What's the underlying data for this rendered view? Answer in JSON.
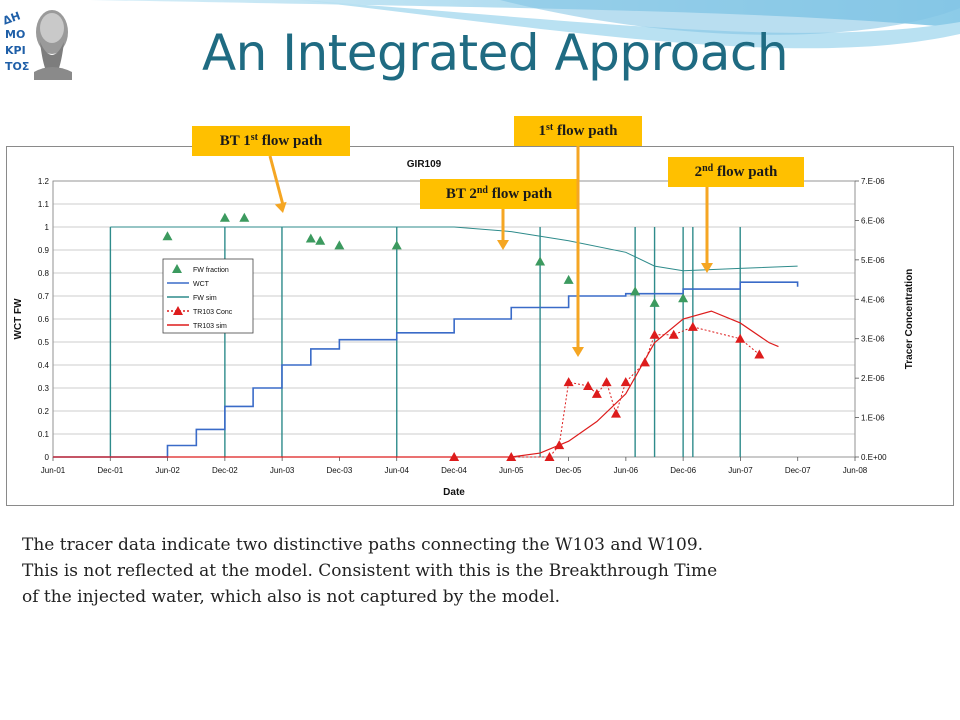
{
  "slide": {
    "title": "An Integrated Approach",
    "body_lines": [
      "The tracer data indicate two distinctive paths connecting the W103 and W109.",
      "This is not reflected at the model. Consistent with this is the Breakthrough Time",
      " of the injected water, which also is not captured by the model."
    ]
  },
  "logo": {
    "icon": "portrait-logo-icon",
    "text": "ΔΗΜΟΚΡΙΤΟΣ"
  },
  "callouts": [
    {
      "id": "bt1",
      "main": "BT 1",
      "sup": "st",
      "rest": " flow path"
    },
    {
      "id": "bt2",
      "main": "BT 2",
      "sup": "nd",
      "rest": " flow path"
    },
    {
      "id": "fp1",
      "main": "1",
      "sup": "st",
      "rest": " flow path"
    },
    {
      "id": "fp2",
      "main": "2",
      "sup": "nd",
      "rest": " flow path"
    }
  ],
  "colors": {
    "title": "#1f6b82",
    "callout": "#ffc000",
    "arrow": "#f5a623",
    "wct": "#3a6bc8",
    "fw_sim": "#2e8b8b",
    "fw_fraction": "#3c9a5f",
    "tracer": "#dd1c1c"
  },
  "chart_data": {
    "type": "line",
    "title": "GIR109",
    "xlabel": "Date",
    "ylabel": "WCT  FW",
    "y2label": "Tracer Concentration",
    "x_ticks": [
      "Jun-01",
      "Dec-01",
      "Jun-02",
      "Dec-02",
      "Jun-03",
      "Dec-03",
      "Jun-04",
      "Dec-04",
      "Jun-05",
      "Dec-05",
      "Jun-06",
      "Dec-06",
      "Jun-07",
      "Dec-07",
      "Jun-08"
    ],
    "y_ticks": [
      "0",
      "0.1",
      "0.2",
      "0.3",
      "0.4",
      "0.5",
      "0.6",
      "0.7",
      "0.8",
      "0.9",
      "1",
      "1.1",
      "1.2"
    ],
    "y2_ticks": [
      "0.E+00",
      "1.E-06",
      "2.E-06",
      "3.E-06",
      "4.E-06",
      "5.E-06",
      "6.E-06",
      "7.E-06"
    ],
    "ylim": [
      0,
      1.2
    ],
    "y2lim": [
      0,
      7e-06
    ],
    "grid": true,
    "legend_position": "left",
    "series": [
      {
        "name": "FW fraction",
        "kind": "markers",
        "marker": "triangle",
        "axis": "left",
        "x": [
          "2002-06",
          "2002-12",
          "2003-02",
          "2003-09",
          "2003-10",
          "2003-12",
          "2004-06",
          "2005-09",
          "2005-12",
          "2006-07",
          "2006-09",
          "2006-12"
        ],
        "y": [
          0.96,
          1.04,
          1.04,
          0.95,
          0.94,
          0.92,
          0.92,
          0.85,
          0.77,
          0.72,
          0.67,
          0.69
        ]
      },
      {
        "name": "WCT",
        "kind": "line",
        "axis": "left",
        "x": [
          "2001-06",
          "2002-03",
          "2002-06",
          "2002-09",
          "2002-12",
          "2003-03",
          "2003-06",
          "2003-09",
          "2003-12",
          "2004-06",
          "2004-12",
          "2005-06",
          "2005-12",
          "2006-06",
          "2006-12",
          "2007-06",
          "2007-12"
        ],
        "y": [
          0.0,
          0.0,
          0.05,
          0.12,
          0.22,
          0.3,
          0.4,
          0.47,
          0.51,
          0.54,
          0.6,
          0.65,
          0.7,
          0.71,
          0.73,
          0.76,
          0.74
        ]
      },
      {
        "name": "FW sim",
        "kind": "line",
        "axis": "left",
        "x": [
          "2001-12",
          "2004-12",
          "2005-06",
          "2005-12",
          "2006-06",
          "2006-09",
          "2006-12",
          "2007-06",
          "2007-12"
        ],
        "y": [
          1.0,
          1.0,
          0.98,
          0.94,
          0.89,
          0.83,
          0.81,
          0.82,
          0.83
        ]
      },
      {
        "name": "TR103 Conc",
        "kind": "markers",
        "marker": "triangle",
        "axis": "right",
        "x": [
          "2004-12",
          "2005-06",
          "2005-10",
          "2005-11",
          "2005-12",
          "2006-02",
          "2006-03",
          "2006-04",
          "2006-05",
          "2006-06",
          "2006-08",
          "2006-09",
          "2006-11",
          "2007-01",
          "2007-06",
          "2007-08"
        ],
        "y": [
          0.0,
          0.0,
          0.0,
          3e-07,
          1.9e-06,
          1.8e-06,
          1.6e-06,
          1.9e-06,
          1.1e-06,
          1.9e-06,
          2.4e-06,
          3.1e-06,
          3.1e-06,
          3.3e-06,
          3e-06,
          2.6e-06
        ]
      },
      {
        "name": "TR103 sim",
        "kind": "line",
        "axis": "right",
        "x": [
          "2001-06",
          "2005-06",
          "2005-09",
          "2005-12",
          "2006-03",
          "2006-06",
          "2006-09",
          "2006-12",
          "2007-03",
          "2007-06",
          "2007-09",
          "2007-10"
        ],
        "y": [
          0.0,
          0.0,
          1e-07,
          4e-07,
          9e-07,
          1.6e-06,
          2.9e-06,
          3.5e-06,
          3.7e-06,
          3.4e-06,
          2.9e-06,
          2.8e-06
        ]
      }
    ],
    "shut_in_drops": [
      "2001-12",
      "2002-12",
      "2003-06",
      "2004-06",
      "2005-09",
      "2006-07",
      "2006-09",
      "2006-12",
      "2007-01",
      "2007-06"
    ]
  }
}
